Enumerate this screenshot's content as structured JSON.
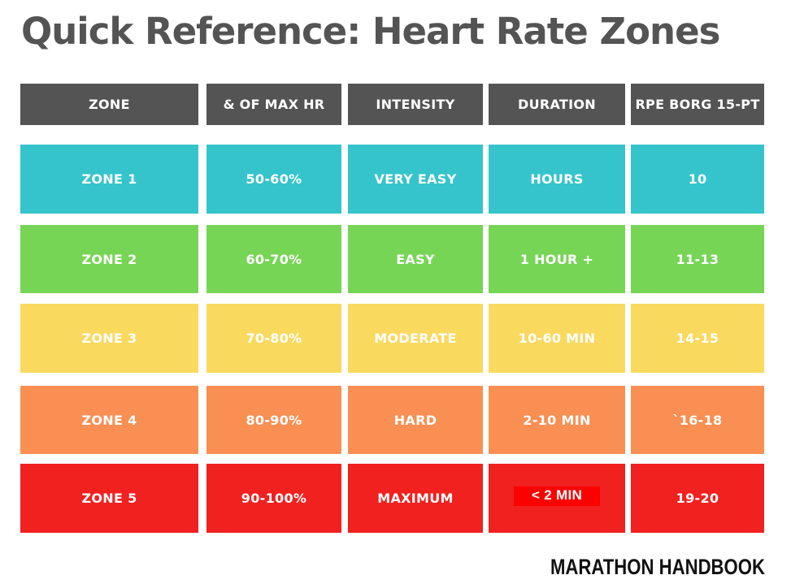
{
  "title": "Quick Reference: Heart Rate Zones",
  "table": {
    "columns": [
      "ZONE",
      "& OF MAX HR",
      "INTENSITY",
      "DURATION",
      "RPE BORG 15-PT"
    ],
    "rows": [
      {
        "zone": "ZONE 1",
        "max_hr": "50-60%",
        "intensity": "VERY EASY",
        "duration": "HOURS",
        "rpe": "10"
      },
      {
        "zone": "ZONE 2",
        "max_hr": "60-70%",
        "intensity": "EASY",
        "duration": "1 HOUR +",
        "rpe": "11-13"
      },
      {
        "zone": "ZONE 3",
        "max_hr": "70-80%",
        "intensity": "MODERATE",
        "duration": "10-60 MIN",
        "rpe": "14-15"
      },
      {
        "zone": "ZONE 4",
        "max_hr": "80-90%",
        "intensity": "HARD",
        "duration": "2-10 MIN",
        "rpe": "`16-18"
      },
      {
        "zone": "ZONE 5",
        "max_hr": "90-100%",
        "intensity": "MAXIMUM",
        "duration": "< 2 MIN",
        "rpe": "19-20"
      }
    ]
  },
  "zone_colors": {
    "header": "#545454",
    "zone1": "#35c4cc",
    "zone2": "#77d555",
    "zone3": "#fad95f",
    "zone4": "#f98f53",
    "zone5": "#f0211f"
  },
  "brand": "MARATHON HANDBOOK"
}
